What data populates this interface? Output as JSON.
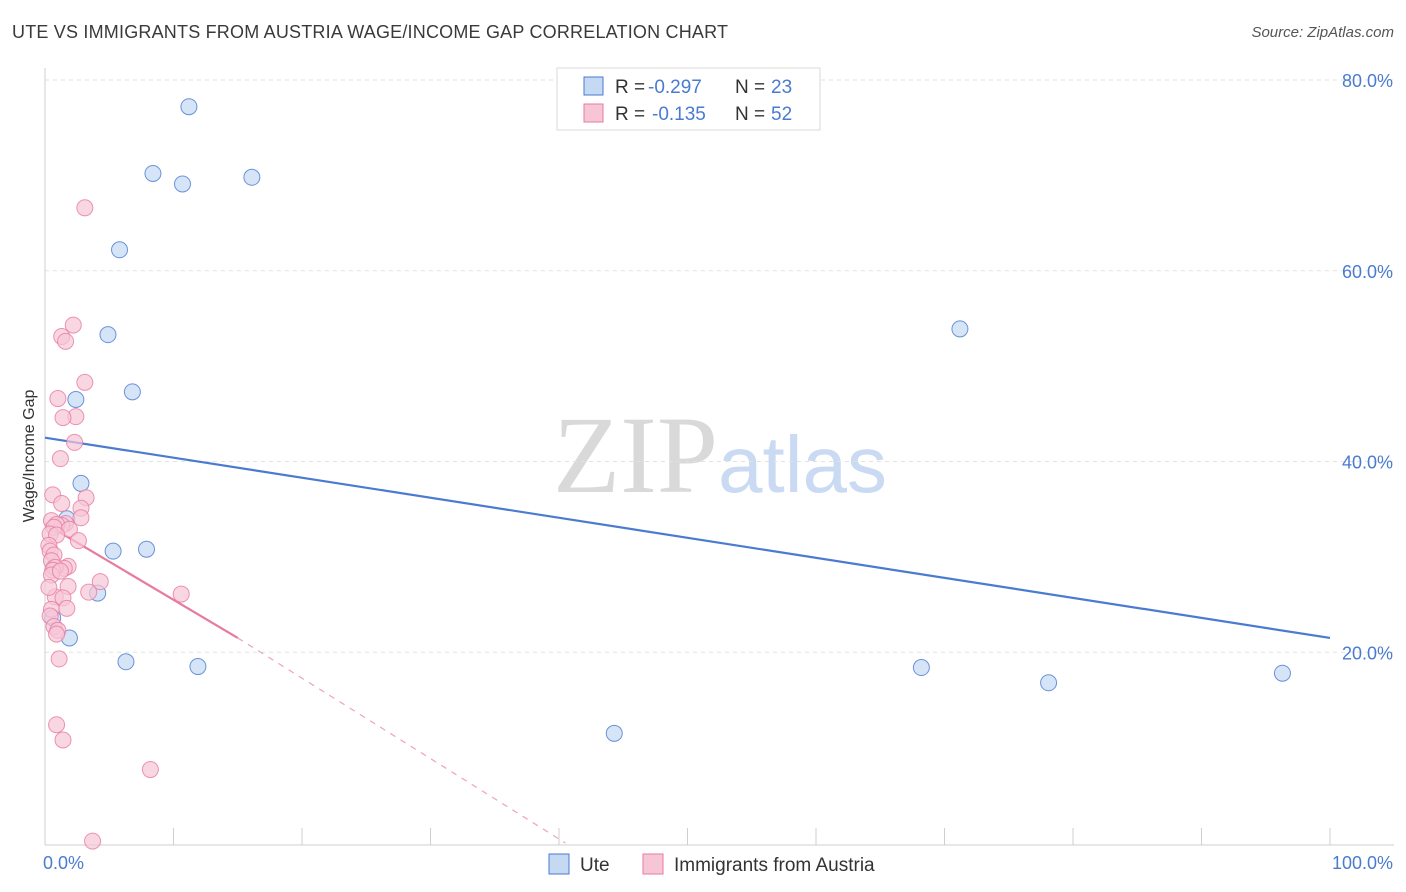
{
  "header": {
    "title": "UTE VS IMMIGRANTS FROM AUSTRIA WAGE/INCOME GAP CORRELATION CHART",
    "source": "Source: ZipAtlas.com"
  },
  "colors": {
    "ute": "#4a7bd0",
    "ute_fill": "#c5d9f3",
    "austria": "#e87aa0",
    "austria_fill": "#f7c6d5",
    "axis_text": "#4a7bd0",
    "grid": "#e2e2e2"
  },
  "legend": {
    "rows": [
      {
        "r_label": "R = ",
        "r_value": "-0.297",
        "n_label": "N = ",
        "n_value": "23"
      },
      {
        "r_label": "R = ",
        "r_value": "-0.135",
        "n_label": "N = ",
        "n_value": "52"
      }
    ]
  },
  "chart_data": {
    "type": "scatter",
    "title": "UTE VS IMMIGRANTS FROM AUSTRIA WAGE/INCOME GAP CORRELATION CHART",
    "xlabel": "",
    "ylabel": "Wage/Income Gap",
    "xlim": [
      0,
      100
    ],
    "ylim": [
      0,
      82
    ],
    "x_tick_labels": {
      "min": "0.0%",
      "max": "100.0%"
    },
    "y_ticks": [
      20,
      40,
      60,
      80
    ],
    "y_tick_labels": [
      "20.0%",
      "40.0%",
      "60.0%",
      "80.0%"
    ],
    "watermark": {
      "zip": "ZIP",
      "atlas": "atlas"
    },
    "series": [
      {
        "name": "Ute",
        "color": "#4a7bd0",
        "R": -0.297,
        "N": 23,
        "points": [
          [
            11.2,
            77.2
          ],
          [
            8.4,
            70.2
          ],
          [
            10.7,
            69.1
          ],
          [
            16.1,
            69.8
          ],
          [
            5.8,
            62.2
          ],
          [
            4.9,
            53.3
          ],
          [
            6.8,
            47.3
          ],
          [
            2.4,
            46.5
          ],
          [
            2.8,
            37.7
          ],
          [
            1.7,
            34.0
          ],
          [
            5.3,
            30.6
          ],
          [
            7.9,
            30.8
          ],
          [
            0.7,
            28.9
          ],
          [
            4.1,
            26.2
          ],
          [
            0.6,
            23.6
          ],
          [
            1.9,
            21.5
          ],
          [
            6.3,
            19.0
          ],
          [
            11.9,
            18.5
          ],
          [
            71.2,
            53.9
          ],
          [
            68.2,
            18.4
          ],
          [
            78.1,
            16.8
          ],
          [
            96.3,
            17.8
          ],
          [
            44.3,
            11.5
          ]
        ],
        "trend": {
          "x": [
            0,
            100
          ],
          "y": [
            42.5,
            21.5
          ],
          "dashed_to": null
        }
      },
      {
        "name": "Immigrants from Austria",
        "color": "#e87aa0",
        "R": -0.135,
        "N": 52,
        "points": [
          [
            3.1,
            66.6
          ],
          [
            2.2,
            54.3
          ],
          [
            1.3,
            53.1
          ],
          [
            1.6,
            52.6
          ],
          [
            3.1,
            48.3
          ],
          [
            1.0,
            46.6
          ],
          [
            2.4,
            44.7
          ],
          [
            1.4,
            44.6
          ],
          [
            2.3,
            42.0
          ],
          [
            1.2,
            40.3
          ],
          [
            0.6,
            36.5
          ],
          [
            3.2,
            36.2
          ],
          [
            1.3,
            35.6
          ],
          [
            2.8,
            35.1
          ],
          [
            2.8,
            34.1
          ],
          [
            0.5,
            33.8
          ],
          [
            1.6,
            33.5
          ],
          [
            1.3,
            33.3
          ],
          [
            0.9,
            33.4
          ],
          [
            0.7,
            33.1
          ],
          [
            1.9,
            32.9
          ],
          [
            0.4,
            32.4
          ],
          [
            0.9,
            32.3
          ],
          [
            2.6,
            31.7
          ],
          [
            0.3,
            31.2
          ],
          [
            0.4,
            30.6
          ],
          [
            0.7,
            30.2
          ],
          [
            0.5,
            29.6
          ],
          [
            1.8,
            29.0
          ],
          [
            1.5,
            28.8
          ],
          [
            0.8,
            28.9
          ],
          [
            0.6,
            28.6
          ],
          [
            0.5,
            28.1
          ],
          [
            1.2,
            28.5
          ],
          [
            4.3,
            27.4
          ],
          [
            1.8,
            26.9
          ],
          [
            3.4,
            26.3
          ],
          [
            10.6,
            26.1
          ],
          [
            0.8,
            25.8
          ],
          [
            1.4,
            25.7
          ],
          [
            0.5,
            24.5
          ],
          [
            0.4,
            23.8
          ],
          [
            0.7,
            22.7
          ],
          [
            1.0,
            22.3
          ],
          [
            0.9,
            21.9
          ],
          [
            1.1,
            19.3
          ],
          [
            0.9,
            12.4
          ],
          [
            1.4,
            10.8
          ],
          [
            8.2,
            7.7
          ],
          [
            3.7,
            0.2
          ],
          [
            0.3,
            26.8
          ],
          [
            1.7,
            24.6
          ]
        ],
        "trend": {
          "x": [
            0,
            15
          ],
          "y": [
            33.5,
            21.5
          ],
          "dashed_to": [
            40.5,
            0
          ]
        }
      }
    ]
  },
  "bottom_legend": {
    "items": [
      {
        "label": "Ute"
      },
      {
        "label": "Immigrants from Austria"
      }
    ]
  }
}
